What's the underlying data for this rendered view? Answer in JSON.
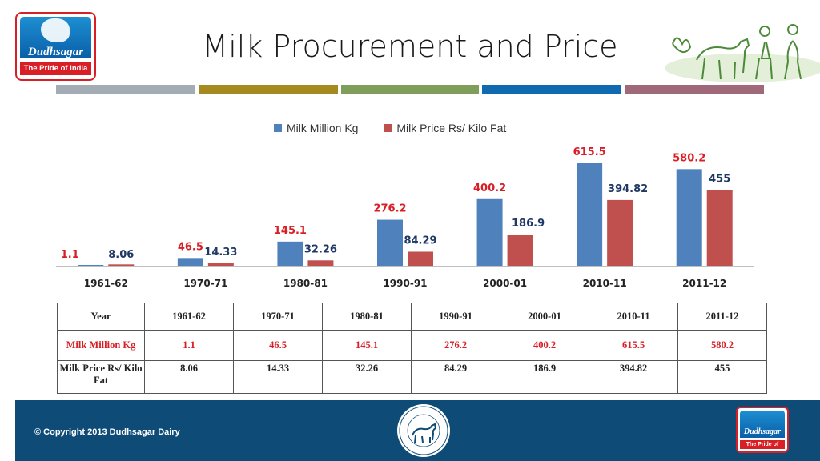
{
  "header": {
    "title": "Milk Procurement and Price",
    "logo_name": "Dudhsagar",
    "logo_tagline": "The Pride of India"
  },
  "band_colors": [
    "#a3acb4",
    "#a48a1f",
    "#7f9e5a",
    "#0f6ab0",
    "#a0697a"
  ],
  "chart_data": {
    "type": "bar",
    "title": "",
    "categories": [
      "1961-62",
      "1970-71",
      "1980-81",
      "1990-91",
      "2000-01",
      "2010-11",
      "2011-12"
    ],
    "series": [
      {
        "name": "Milk Million Kg",
        "color": "#4f81bd",
        "label_color": "#d81f26",
        "values": [
          1.1,
          46.5,
          145.1,
          276.2,
          400.2,
          615.5,
          580.2
        ],
        "labels": [
          "1.1",
          "46.5",
          "145.1",
          "276.2",
          "400.2",
          "615.5",
          "580.2"
        ]
      },
      {
        "name": "Milk Price Rs/ Kilo Fat",
        "color": "#c0504d",
        "label_color": "#1f3864",
        "values": [
          8.06,
          14.33,
          32.26,
          84.29,
          186.9,
          394.82,
          455
        ],
        "labels": [
          "8.06",
          "14.33",
          "32.26",
          "84.29",
          "186.9",
          "394.82",
          "455"
        ]
      }
    ],
    "ylim": [
      0,
      615.5
    ],
    "grid": false,
    "legend": "top"
  },
  "table": {
    "header": [
      "Year",
      "1961-62",
      "1970-71",
      "1980-81",
      "1990-91",
      "2000-01",
      "2010-11",
      "2011-12"
    ],
    "rows": [
      [
        "Milk Million Kg",
        "1.1",
        "46.5",
        "145.1",
        "276.2",
        "400.2",
        "615.5",
        "580.2"
      ],
      [
        "Milk Price Rs/ Kilo Fat",
        "8.06",
        "14.33",
        "32.26",
        "84.29",
        "186.9",
        "394.82",
        "455"
      ]
    ]
  },
  "footer": {
    "copyright": "© Copyright 2013 Dudhsagar Dairy"
  }
}
